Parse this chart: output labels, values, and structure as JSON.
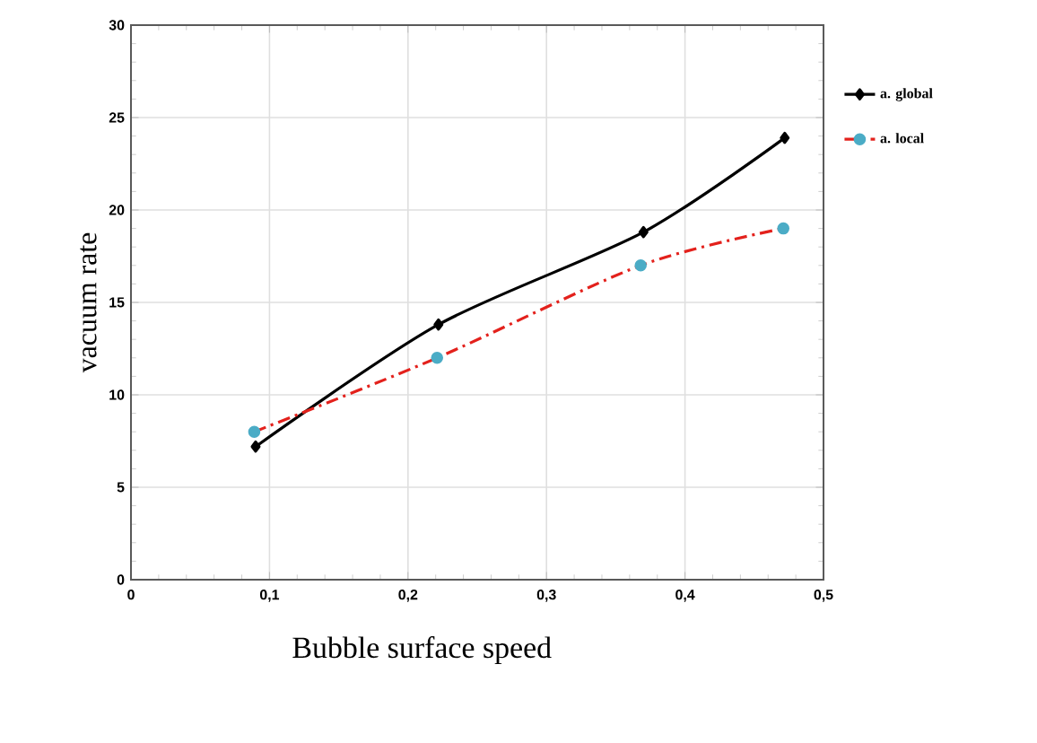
{
  "chart_data": {
    "type": "line",
    "xlabel": "Bubble surface speed",
    "ylabel": "vacuum rate",
    "xlim": [
      0,
      0.5
    ],
    "ylim": [
      0,
      30
    ],
    "xticks": [
      0,
      {
        "value": 0.1,
        "label": "0,1"
      },
      {
        "value": 0.2,
        "label": "0,2"
      },
      {
        "value": 0.3,
        "label": "0,3"
      },
      {
        "value": 0.4,
        "label": "0,4"
      },
      {
        "value": 0.5,
        "label": "0,5"
      }
    ],
    "yticks": [
      0,
      5,
      10,
      15,
      20,
      25,
      30
    ],
    "grid": true,
    "legend": "right",
    "series": [
      {
        "name": "a. global",
        "color": "#000000",
        "marker": "diamond",
        "line_style": "solid",
        "x": [
          0.09,
          0.222,
          0.37,
          0.472
        ],
        "values": [
          7.2,
          13.8,
          18.8,
          23.9
        ]
      },
      {
        "name": "a. local",
        "color": "#e3211c",
        "colors": [
          "#4bacc6",
          "#4bacc6",
          "#4bacc6",
          "#4bacc6"
        ],
        "marker": "circle",
        "line_style": "dashdotted",
        "x": [
          0.089,
          0.221,
          0.368,
          0.471
        ],
        "values": [
          8.0,
          12.0,
          17.0,
          19.0
        ]
      }
    ]
  }
}
